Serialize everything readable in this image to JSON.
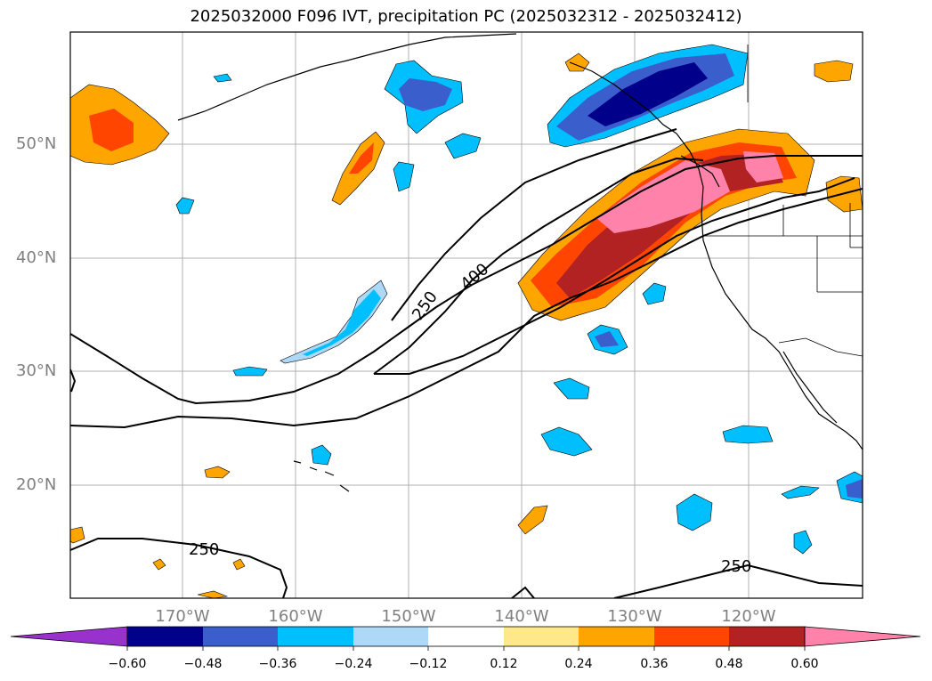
{
  "title": "2025032000 F096 IVT, precipitation PC (2025032312 - 2025032412)",
  "lat_labels": [
    "50°N",
    "40°N",
    "30°N",
    "20°N"
  ],
  "lon_labels": [
    "170°W",
    "160°W",
    "150°W",
    "140°W",
    "130°W",
    "120°W"
  ],
  "colorbar": {
    "ticks": [
      "−0.60",
      "−0.48",
      "−0.36",
      "−0.24",
      "−0.12",
      "0.12",
      "0.24",
      "0.36",
      "0.48",
      "0.60"
    ],
    "colors": [
      "#9932cc",
      "#00008b",
      "#3a5fcd",
      "#00bfff",
      "#add8f8",
      "#ffffff",
      "#ffe88a",
      "#ffa500",
      "#ff4500",
      "#b22222",
      "#ff82ab"
    ],
    "extend": "both"
  },
  "contours": {
    "labels": [
      "250",
      "400",
      "250",
      "250"
    ],
    "line_color": "#000000"
  },
  "colors": {
    "grid": "#b0b0b0",
    "coast": "#000000"
  }
}
